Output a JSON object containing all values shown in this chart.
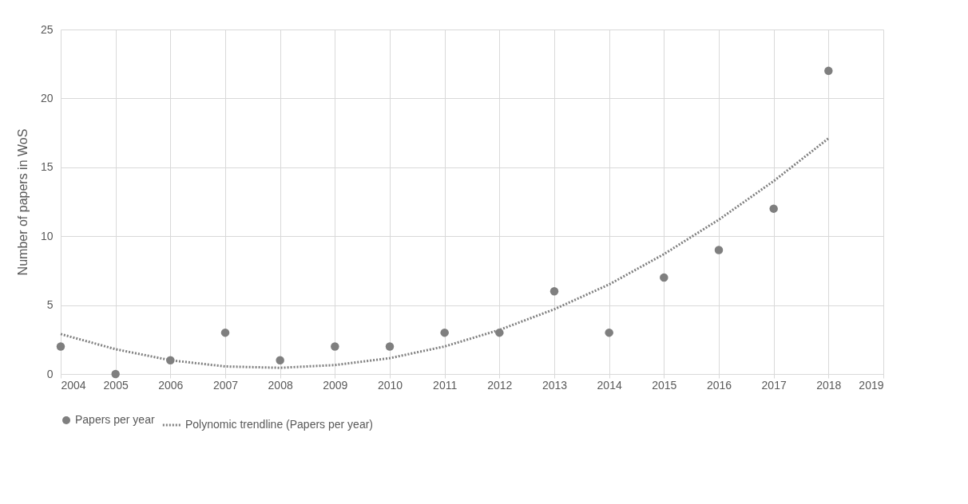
{
  "chart_data": {
    "type": "scatter",
    "ylabel": "Number of papers in WoS",
    "x": [
      2004,
      2005,
      2006,
      2007,
      2008,
      2009,
      2010,
      2011,
      2012,
      2013,
      2014,
      2015,
      2016,
      2017,
      2018
    ],
    "series": [
      {
        "name": "Papers per year",
        "color": "#7f7f7f",
        "marker": "circle",
        "values": [
          2,
          0,
          1,
          3,
          1,
          2,
          2,
          3,
          3,
          6,
          3,
          7,
          9,
          12,
          22
        ]
      },
      {
        "name": "Polynomic trendline (Papers per year)",
        "type": "line",
        "color": "#808080",
        "line_style": "dotted",
        "marker": "none",
        "values": [
          2.9,
          1.8,
          1.0,
          0.55,
          0.45,
          0.65,
          1.15,
          2.0,
          3.2,
          4.7,
          6.5,
          8.7,
          11.2,
          14.0,
          17.1
        ]
      }
    ],
    "xlim": [
      2004,
      2019
    ],
    "xticks": [
      2004,
      2005,
      2006,
      2007,
      2008,
      2009,
      2010,
      2011,
      2012,
      2013,
      2014,
      2015,
      2016,
      2017,
      2018,
      2019
    ],
    "ylim": [
      0,
      25
    ],
    "yticks": [
      0,
      5,
      10,
      15,
      20,
      25
    ],
    "grid": true,
    "legend": "bottom"
  }
}
